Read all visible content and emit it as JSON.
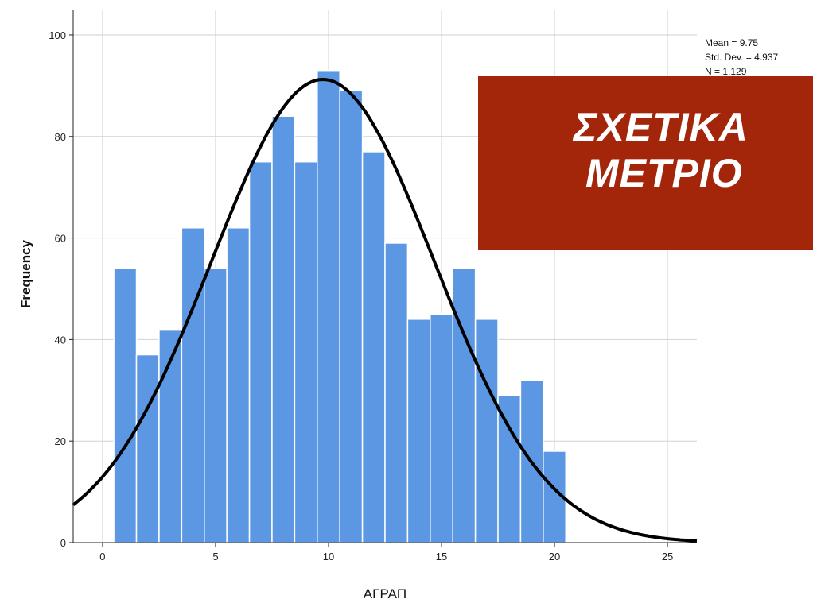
{
  "chart_data": {
    "type": "bar",
    "subtype": "histogram-with-normal-curve",
    "xlabel": "ΑΓΡΑΠ",
    "ylabel": "Frequency",
    "xlim": [
      -1.3,
      26.3
    ],
    "ylim": [
      0,
      105
    ],
    "x_ticks": [
      0,
      5,
      10,
      15,
      20,
      25
    ],
    "y_ticks": [
      0,
      20,
      40,
      60,
      80,
      100
    ],
    "grid": true,
    "bar_color": "#5b97e3",
    "bins": [
      {
        "x": 1,
        "value": 54
      },
      {
        "x": 2,
        "value": 37
      },
      {
        "x": 3,
        "value": 42
      },
      {
        "x": 4,
        "value": 62
      },
      {
        "x": 5,
        "value": 54
      },
      {
        "x": 6,
        "value": 62
      },
      {
        "x": 7,
        "value": 75
      },
      {
        "x": 8,
        "value": 84
      },
      {
        "x": 9,
        "value": 75
      },
      {
        "x": 10,
        "value": 93
      },
      {
        "x": 11,
        "value": 89
      },
      {
        "x": 12,
        "value": 77
      },
      {
        "x": 13,
        "value": 59
      },
      {
        "x": 14,
        "value": 44
      },
      {
        "x": 15,
        "value": 45
      },
      {
        "x": 16,
        "value": 54
      },
      {
        "x": 17,
        "value": 44
      },
      {
        "x": 18,
        "value": 29
      },
      {
        "x": 19,
        "value": 32
      },
      {
        "x": 20,
        "value": 18
      }
    ],
    "normal_curve": {
      "mean": 9.75,
      "sd": 4.937,
      "n": 1129,
      "bin_width": 1
    },
    "stats": [
      "Mean = 9.75",
      "Std. Dev. = 4.937",
      "N = 1,129"
    ]
  },
  "overlay": {
    "line1": "ΣΧΕΤΙΚΑ",
    "line2": "ΜΕΤΡΙΟ",
    "color": "#a3260b"
  }
}
